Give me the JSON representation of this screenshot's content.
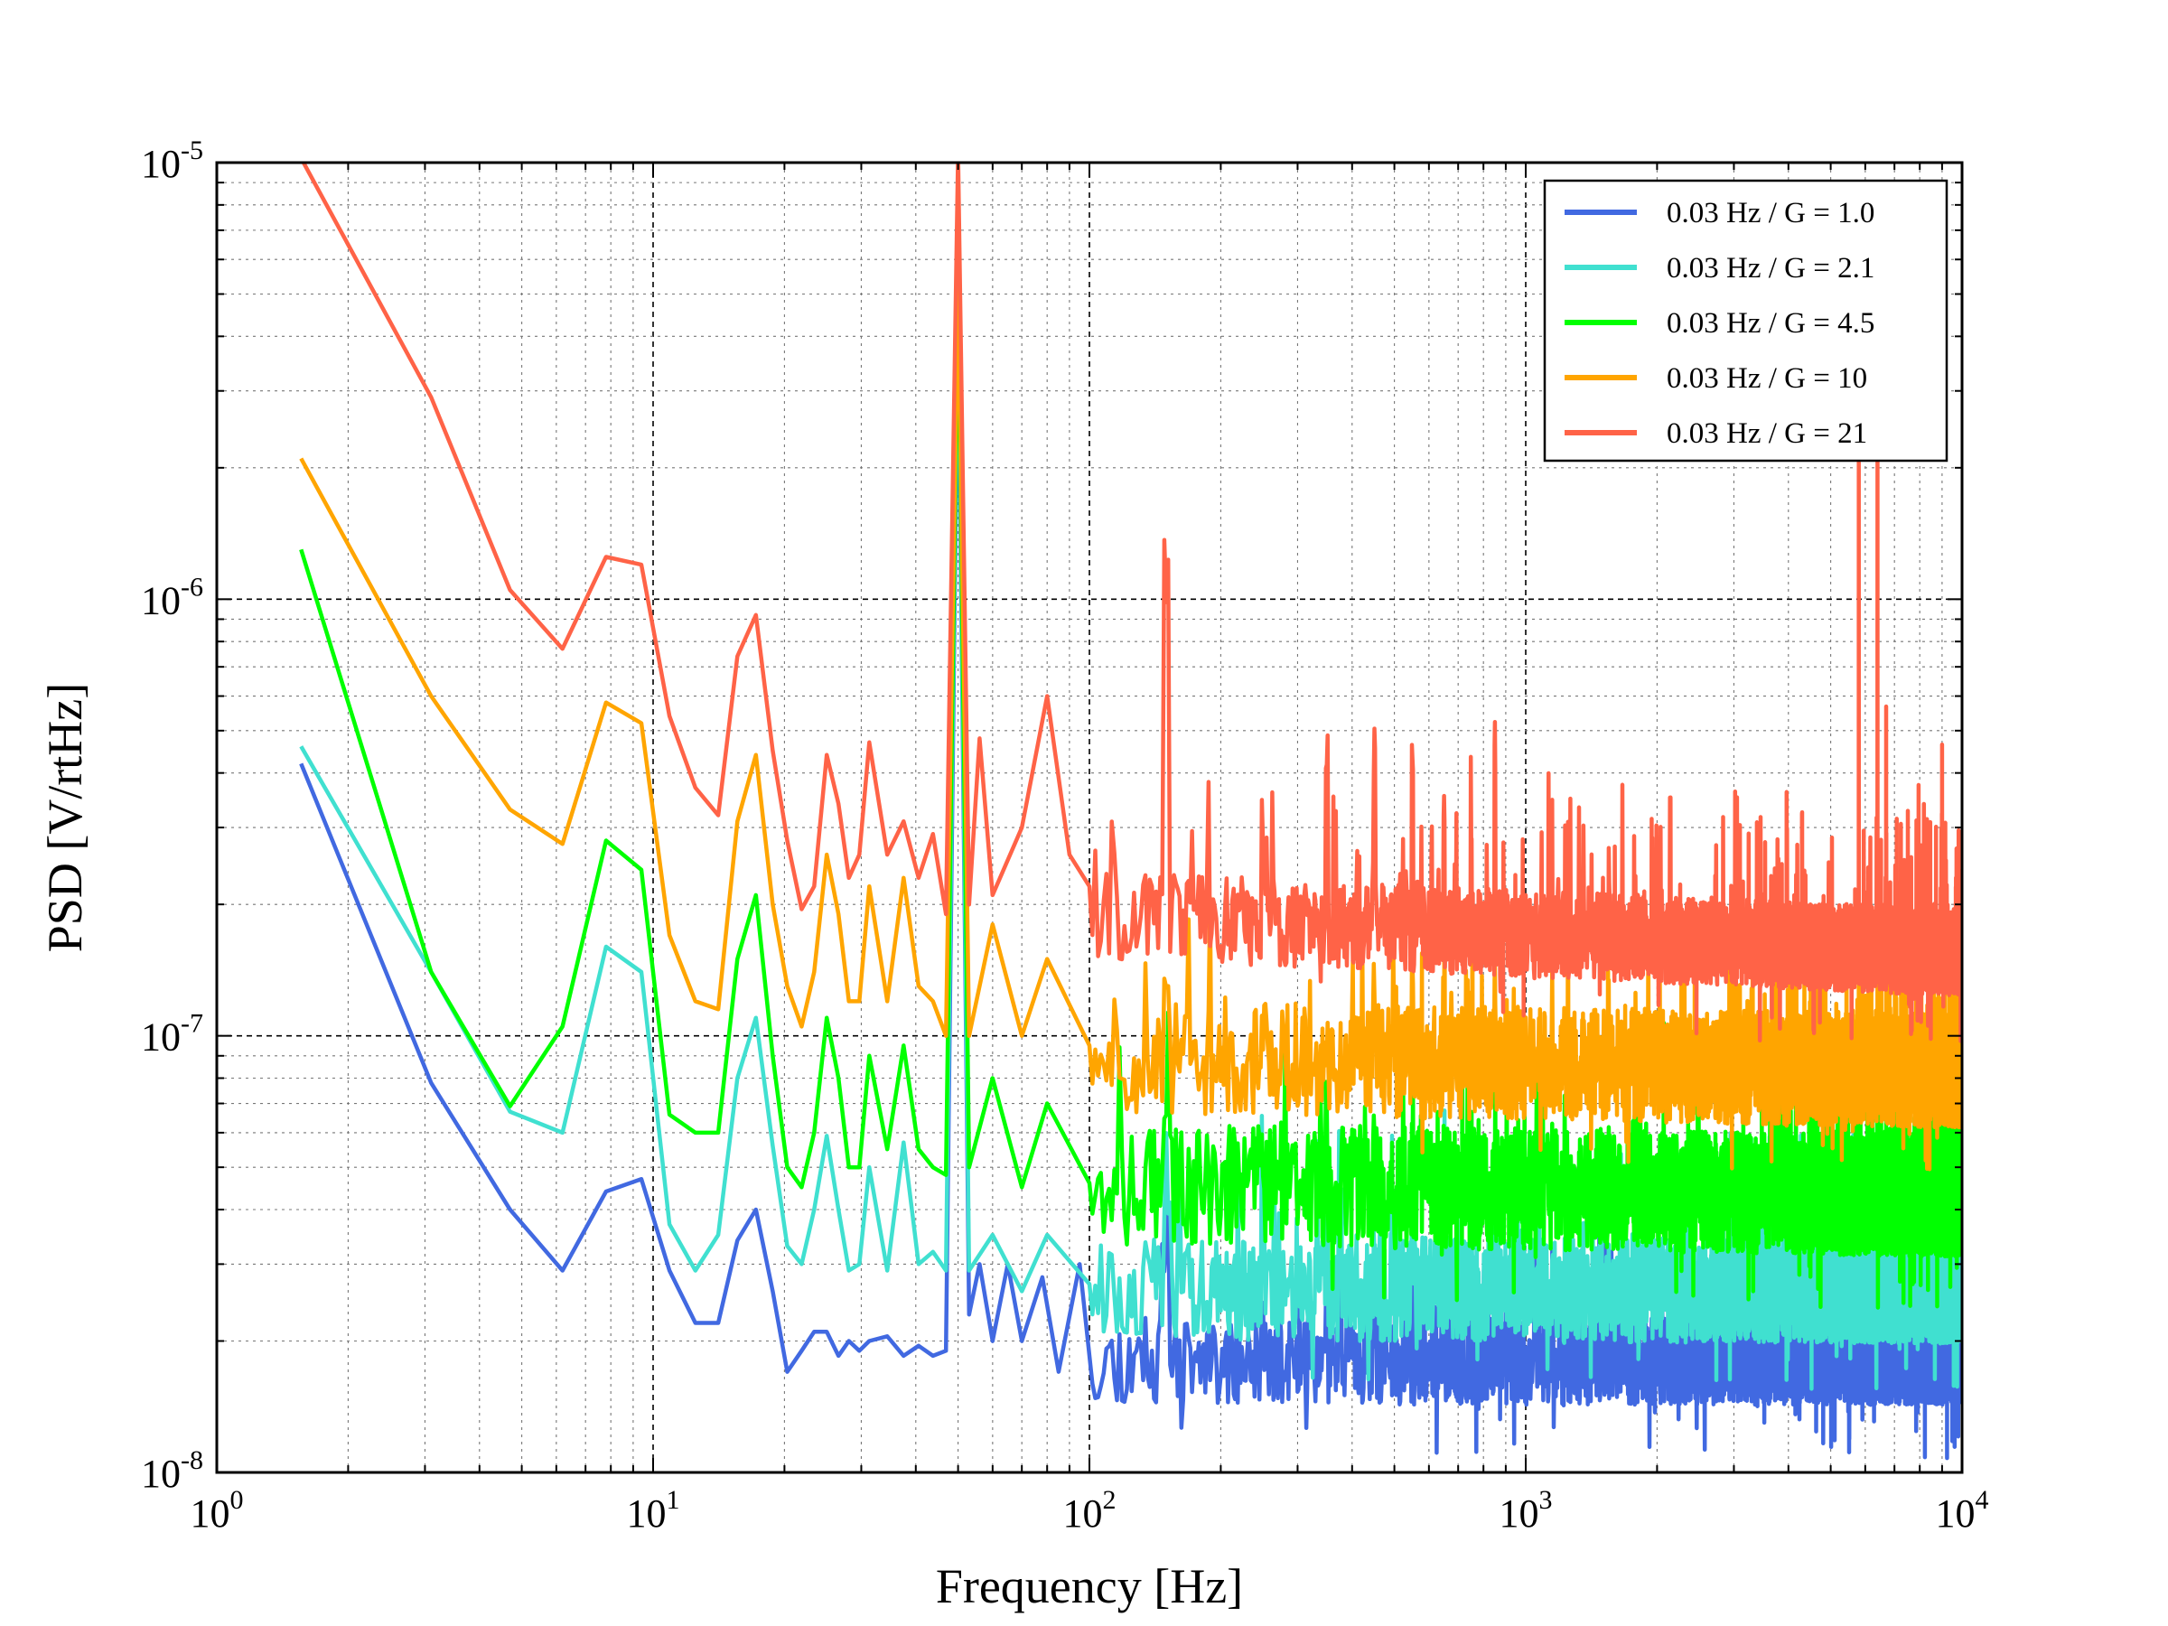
{
  "chart_data": {
    "type": "line",
    "xscale": "log",
    "yscale": "log",
    "title": "",
    "xlabel": "Frequency [Hz]",
    "ylabel": "PSD [V/rtHz]",
    "xlim": [
      1,
      10000
    ],
    "ylim": [
      1e-08,
      1e-05
    ],
    "grid": true,
    "legend_position": "top-right",
    "x_ticks": [
      {
        "base": "10",
        "exp": "0",
        "value": 1
      },
      {
        "base": "10",
        "exp": "1",
        "value": 10
      },
      {
        "base": "10",
        "exp": "2",
        "value": 100
      },
      {
        "base": "10",
        "exp": "3",
        "value": 1000
      },
      {
        "base": "10",
        "exp": "4",
        "value": 10000
      }
    ],
    "y_ticks": [
      {
        "base": "10",
        "exp": "-8",
        "value": 1e-08
      },
      {
        "base": "10",
        "exp": "-7",
        "value": 1e-07
      },
      {
        "base": "10",
        "exp": "-6",
        "value": 1e-06
      },
      {
        "base": "10",
        "exp": "-5",
        "value": 1e-05
      }
    ],
    "series": [
      {
        "name": "0.03 Hz / G = 1.0",
        "color": "#4169e1",
        "points": [
          [
            1.56,
            4.2e-07
          ],
          [
            3.1,
            7.8e-08
          ],
          [
            4.7,
            4e-08
          ],
          [
            6.2,
            2.9e-08
          ],
          [
            7.8,
            4.4e-08
          ],
          [
            9.4,
            4.7e-08
          ],
          [
            10.9,
            2.9e-08
          ],
          [
            12.5,
            2.2e-08
          ],
          [
            14.1,
            2.2e-08
          ],
          [
            15.6,
            3.4e-08
          ],
          [
            17.2,
            4e-08
          ],
          [
            18.8,
            2.6e-08
          ],
          [
            20.3,
            1.7e-08
          ],
          [
            21.9,
            1.9e-08
          ],
          [
            23.4,
            2.1e-08
          ],
          [
            25,
            2.1e-08
          ],
          [
            26.6,
            1.85e-08
          ],
          [
            28.1,
            2e-08
          ],
          [
            29.7,
            1.9e-08
          ],
          [
            31.3,
            2e-08
          ],
          [
            34.4,
            2.05e-08
          ],
          [
            37.5,
            1.85e-08
          ],
          [
            40.6,
            1.95e-08
          ],
          [
            43.8,
            1.85e-08
          ],
          [
            46.9,
            1.9e-08
          ],
          [
            50,
            4.6e-06
          ],
          [
            53,
            2.3e-08
          ],
          [
            56,
            3e-08
          ],
          [
            60,
            2e-08
          ],
          [
            65,
            3e-08
          ],
          [
            70,
            2e-08
          ],
          [
            78,
            2.8e-08
          ],
          [
            85,
            1.7e-08
          ],
          [
            95,
            3e-08
          ],
          [
            110,
            2e-08
          ],
          [
            150,
            1.9e-08
          ],
          [
            1000,
            1.8e-08
          ],
          [
            4400,
            1.8e-08
          ],
          [
            5800,
            2.6e-08
          ],
          [
            6200,
            1.8e-08
          ],
          [
            10000,
            1.75e-08
          ]
        ],
        "floor": [
          1.8e-08,
          1.8e-08
        ],
        "noise": 0.1,
        "spike_rate": 0.06,
        "seed": 11
      },
      {
        "name": "0.03 Hz / G = 2.1",
        "color": "#40e0d0",
        "points": [
          [
            1.56,
            4.6e-07
          ],
          [
            3.1,
            1.4e-07
          ],
          [
            4.7,
            6.7e-08
          ],
          [
            6.2,
            6e-08
          ],
          [
            7.8,
            1.6e-07
          ],
          [
            9.4,
            1.4e-07
          ],
          [
            10.9,
            3.7e-08
          ],
          [
            12.5,
            2.9e-08
          ],
          [
            14.1,
            3.5e-08
          ],
          [
            15.6,
            8e-08
          ],
          [
            17.2,
            1.1e-07
          ],
          [
            18.8,
            5.6e-08
          ],
          [
            20.3,
            3.3e-08
          ],
          [
            21.9,
            3e-08
          ],
          [
            23.4,
            4e-08
          ],
          [
            25,
            5.9e-08
          ],
          [
            26.6,
            4e-08
          ],
          [
            28.1,
            2.9e-08
          ],
          [
            29.7,
            3e-08
          ],
          [
            31.3,
            5e-08
          ],
          [
            34.4,
            2.9e-08
          ],
          [
            37.5,
            5.7e-08
          ],
          [
            40.6,
            3e-08
          ],
          [
            43.8,
            3.2e-08
          ],
          [
            46.9,
            2.9e-08
          ],
          [
            50,
            5.3e-06
          ],
          [
            53,
            2.9e-08
          ],
          [
            60,
            3.5e-08
          ],
          [
            70,
            2.6e-08
          ],
          [
            80,
            3.5e-08
          ],
          [
            100,
            2.7e-08
          ],
          [
            200,
            2.6e-08
          ],
          [
            1000,
            2.6e-08
          ],
          [
            10000,
            2.5e-08
          ]
        ],
        "floor": [
          2.65e-08,
          2.6e-08
        ],
        "noise": 0.12,
        "spike_rate": 0.06,
        "seed": 23
      },
      {
        "name": "0.03 Hz / G = 4.5",
        "color": "#00ff00",
        "points": [
          [
            1.56,
            1.3e-06
          ],
          [
            3.1,
            1.4e-07
          ],
          [
            4.7,
            6.9e-08
          ],
          [
            6.2,
            1.05e-07
          ],
          [
            7.8,
            2.8e-07
          ],
          [
            9.4,
            2.4e-07
          ],
          [
            10.9,
            6.6e-08
          ],
          [
            12.5,
            6e-08
          ],
          [
            14.1,
            6e-08
          ],
          [
            15.6,
            1.5e-07
          ],
          [
            17.2,
            2.1e-07
          ],
          [
            18.8,
            9e-08
          ],
          [
            20.3,
            5e-08
          ],
          [
            21.9,
            4.5e-08
          ],
          [
            23.4,
            6e-08
          ],
          [
            25,
            1.1e-07
          ],
          [
            26.6,
            8e-08
          ],
          [
            28.1,
            5e-08
          ],
          [
            29.7,
            5e-08
          ],
          [
            31.3,
            9e-08
          ],
          [
            34.4,
            5.5e-08
          ],
          [
            37.5,
            9.5e-08
          ],
          [
            40.6,
            5.5e-08
          ],
          [
            43.8,
            5e-08
          ],
          [
            46.9,
            4.8e-08
          ],
          [
            50,
            5.4e-06
          ],
          [
            53,
            5e-08
          ],
          [
            60,
            8e-08
          ],
          [
            70,
            4.5e-08
          ],
          [
            80,
            7e-08
          ],
          [
            100,
            4.6e-08
          ],
          [
            200,
            4.5e-08
          ],
          [
            1000,
            4.3e-08
          ],
          [
            10000,
            4.2e-08
          ]
        ],
        "floor": [
          4.6e-08,
          4.3e-08
        ],
        "noise": 0.14,
        "spike_rate": 0.06,
        "seed": 37
      },
      {
        "name": "0.03 Hz / G = 10",
        "color": "#ffa500",
        "points": [
          [
            1.56,
            2.1e-06
          ],
          [
            3.1,
            6e-07
          ],
          [
            4.7,
            3.3e-07
          ],
          [
            6.2,
            2.75e-07
          ],
          [
            7.8,
            5.8e-07
          ],
          [
            9.4,
            5.2e-07
          ],
          [
            10.9,
            1.7e-07
          ],
          [
            12.5,
            1.2e-07
          ],
          [
            14.1,
            1.15e-07
          ],
          [
            15.6,
            3.1e-07
          ],
          [
            17.2,
            4.4e-07
          ],
          [
            18.8,
            2e-07
          ],
          [
            20.3,
            1.3e-07
          ],
          [
            21.9,
            1.05e-07
          ],
          [
            23.4,
            1.4e-07
          ],
          [
            25,
            2.6e-07
          ],
          [
            26.6,
            1.9e-07
          ],
          [
            28.1,
            1.2e-07
          ],
          [
            29.7,
            1.2e-07
          ],
          [
            31.3,
            2.2e-07
          ],
          [
            34.4,
            1.2e-07
          ],
          [
            37.5,
            2.3e-07
          ],
          [
            40.6,
            1.3e-07
          ],
          [
            43.8,
            1.2e-07
          ],
          [
            46.9,
            1e-07
          ],
          [
            50,
            5.5e-06
          ],
          [
            53,
            1e-07
          ],
          [
            60,
            1.8e-07
          ],
          [
            70,
            1e-07
          ],
          [
            80,
            1.5e-07
          ],
          [
            100,
            9.5e-08
          ],
          [
            200,
            9e-08
          ],
          [
            1000,
            8.5e-08
          ],
          [
            10000,
            8.2e-08
          ]
        ],
        "floor": [
          9e-08,
          8.3e-08
        ],
        "noise": 0.13,
        "spike_rate": 0.06,
        "seed": 51
      },
      {
        "name": "0.03 Hz / G = 21",
        "color": "#ff6347",
        "points": [
          [
            1.5,
            1.1e-05
          ],
          [
            3.1,
            2.9e-06
          ],
          [
            4.7,
            1.05e-06
          ],
          [
            6.2,
            7.7e-07
          ],
          [
            7.8,
            1.25e-06
          ],
          [
            9.4,
            1.2e-06
          ],
          [
            10.9,
            5.4e-07
          ],
          [
            12.5,
            3.7e-07
          ],
          [
            14.1,
            3.2e-07
          ],
          [
            15.6,
            7.4e-07
          ],
          [
            17.2,
            9.2e-07
          ],
          [
            18.8,
            4.5e-07
          ],
          [
            20.3,
            2.8e-07
          ],
          [
            21.9,
            1.95e-07
          ],
          [
            23.4,
            2.2e-07
          ],
          [
            25,
            4.4e-07
          ],
          [
            26.6,
            3.4e-07
          ],
          [
            28.1,
            2.3e-07
          ],
          [
            29.7,
            2.6e-07
          ],
          [
            31.3,
            4.7e-07
          ],
          [
            34.4,
            2.6e-07
          ],
          [
            37.5,
            3.1e-07
          ],
          [
            40.6,
            2.3e-07
          ],
          [
            43.8,
            2.9e-07
          ],
          [
            46.9,
            1.9e-07
          ],
          [
            50,
            1.05e-05
          ],
          [
            53,
            2e-07
          ],
          [
            56,
            4.8e-07
          ],
          [
            60,
            2.1e-07
          ],
          [
            70,
            3e-07
          ],
          [
            80,
            6e-07
          ],
          [
            90,
            2.6e-07
          ],
          [
            100,
            2.2e-07
          ],
          [
            150,
            2e-07
          ],
          [
            300,
            1.7e-07
          ],
          [
            1000,
            1.6e-07
          ],
          [
            10000,
            1.55e-07
          ]
        ],
        "floor": [
          1.9e-07,
          1.55e-07
        ],
        "noise": 0.1,
        "spike_rate": 0.06,
        "seed": 67
      }
    ],
    "harmonic_peaks": [
      {
        "f": 150,
        "factor": 6.0
      },
      {
        "f": 250,
        "factor": 1.6
      },
      {
        "f": 350,
        "factor": 2.4
      },
      {
        "f": 450,
        "factor": 2.3
      },
      {
        "f": 550,
        "factor": 2.8
      },
      {
        "f": 650,
        "factor": 2.2
      },
      {
        "f": 750,
        "factor": 2.0
      },
      {
        "f": 850,
        "factor": 2.6
      },
      {
        "f": 1150,
        "factor": 2.1
      },
      {
        "f": 1250,
        "factor": 2.0
      },
      {
        "f": 1550,
        "factor": 1.8
      },
      {
        "f": 2050,
        "factor": 1.6
      },
      {
        "f": 3050,
        "factor": 1.8
      },
      {
        "f": 5800,
        "factor": 14.0
      },
      {
        "f": 6400,
        "factor": 14.0
      },
      {
        "f": 6700,
        "factor": 4.0
      },
      {
        "f": 7950,
        "factor": 2.0
      },
      {
        "f": 9000,
        "factor": 3.5
      }
    ]
  }
}
